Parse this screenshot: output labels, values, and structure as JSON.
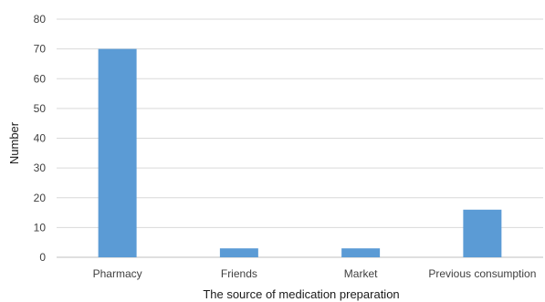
{
  "chart_data": {
    "type": "bar",
    "categories": [
      "Pharmacy",
      "Friends",
      "Market",
      "Previous consumption"
    ],
    "values": [
      70,
      3,
      3,
      16
    ],
    "title": "",
    "xlabel": "The source of medication preparation",
    "ylabel": "Number",
    "ylim": [
      0,
      80
    ],
    "yticks": [
      0,
      10,
      20,
      30,
      40,
      50,
      60,
      70,
      80
    ],
    "grid": true,
    "legend": "none",
    "bar_color": "#5b9bd5"
  }
}
